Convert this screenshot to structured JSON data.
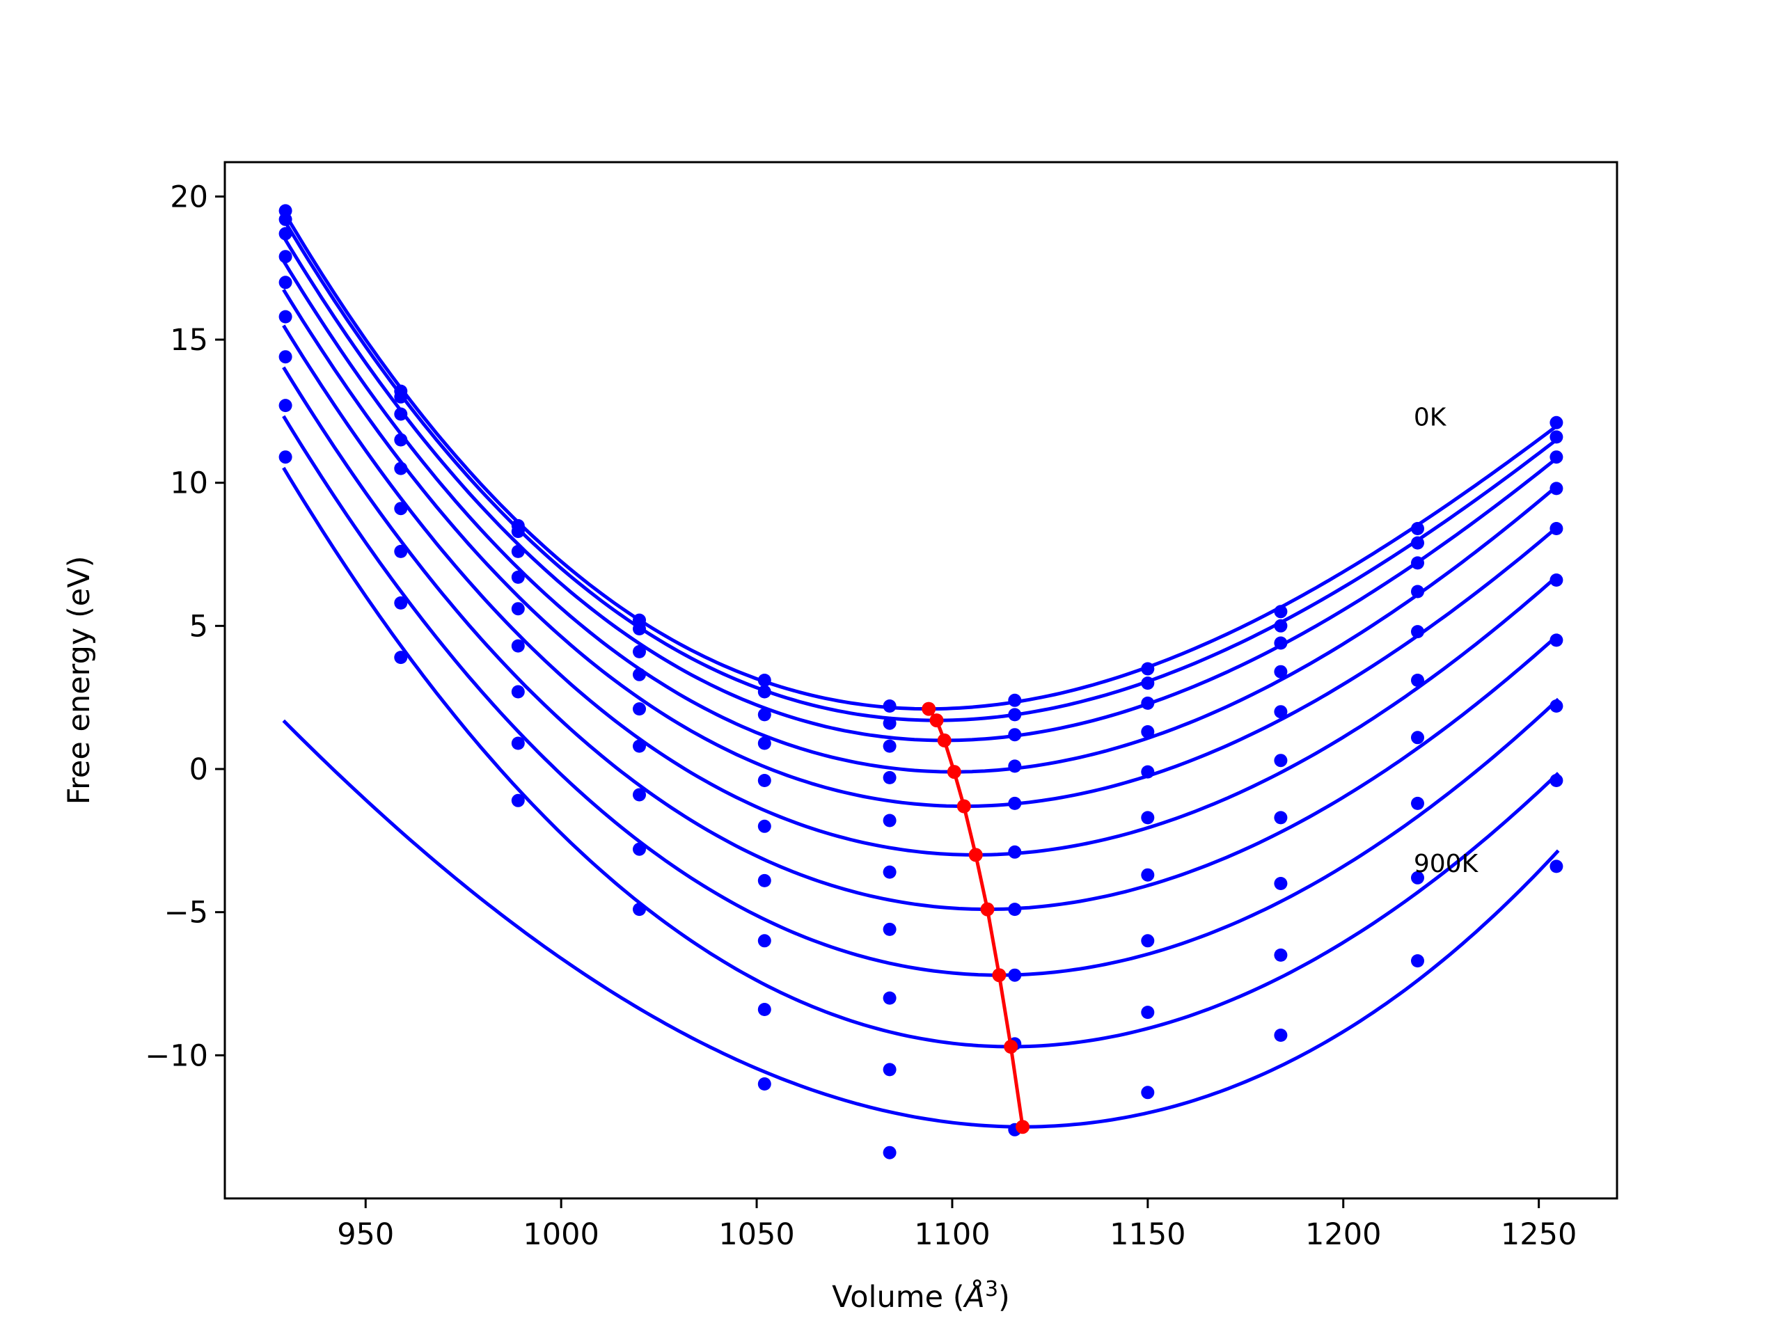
{
  "chart_data": {
    "type": "line",
    "title": "",
    "xlabel": "Volume (",
    "xlabel_unit": "Å",
    "xlabel_exponent": "3",
    "xlabel_close": ")",
    "ylabel": "Free energy (eV)",
    "xlim": [
      914,
      1270
    ],
    "ylim": [
      -15,
      21.2
    ],
    "x_ticks": [
      950,
      1000,
      1050,
      1100,
      1150,
      1200,
      1250
    ],
    "x_tick_labels": [
      "950",
      "1000",
      "1050",
      "1100",
      "1150",
      "1200",
      "1250"
    ],
    "y_ticks": [
      -10,
      -5,
      0,
      5,
      10,
      15,
      20
    ],
    "y_tick_labels": [
      "−10",
      "−5",
      "0",
      "5",
      "10",
      "15",
      "20"
    ],
    "grid": false,
    "annotations": [
      {
        "text": "0K",
        "x": 1218,
        "y": 12.0
      },
      {
        "text": "900K",
        "x": 1218,
        "y": -3.6
      }
    ],
    "colors": {
      "fit_curves": "#0000ff",
      "data_points": "#0000ff",
      "minimum_path": "#ff0000",
      "axes": "#000000"
    },
    "volumes": [
      929.5,
      959,
      989,
      1020,
      1052,
      1084,
      1116,
      1150,
      1184,
      1219,
      1254.5
    ],
    "series": [
      {
        "energies": [
          19.5,
          13.2,
          8.5,
          5.2,
          3.1,
          2.2,
          2.4,
          3.5,
          5.5,
          8.4,
          12.1
        ],
        "fit_min": [
          1094,
          2.1
        ]
      },
      {
        "energies": [
          19.2,
          13.0,
          8.3,
          4.9,
          2.7,
          1.6,
          1.9,
          3.0,
          5.0,
          7.9,
          11.6
        ],
        "fit_min": [
          1096,
          1.7
        ]
      },
      {
        "energies": [
          18.7,
          12.4,
          7.6,
          4.1,
          1.9,
          0.8,
          1.2,
          2.3,
          4.4,
          7.2,
          10.9
        ],
        "fit_min": [
          1098,
          1.0
        ]
      },
      {
        "energies": [
          17.9,
          11.5,
          6.7,
          3.3,
          0.9,
          -0.3,
          0.1,
          1.3,
          3.4,
          6.2,
          9.8
        ],
        "fit_min": [
          1100.5,
          -0.1
        ]
      },
      {
        "energies": [
          17.0,
          10.5,
          5.6,
          2.1,
          -0.4,
          -1.8,
          -1.2,
          -0.1,
          2.0,
          4.8,
          8.4
        ],
        "fit_min": [
          1103,
          -1.3
        ]
      },
      {
        "energies": [
          15.8,
          9.1,
          4.3,
          0.8,
          -2.0,
          -3.6,
          -2.9,
          -1.7,
          0.3,
          3.1,
          6.6
        ],
        "fit_min": [
          1106,
          -3.0
        ]
      },
      {
        "energies": [
          14.4,
          7.6,
          2.7,
          -0.9,
          -3.9,
          -5.6,
          -4.9,
          -3.7,
          -1.7,
          1.1,
          4.5
        ],
        "fit_min": [
          1109,
          -4.9
        ]
      },
      {
        "energies": [
          12.7,
          5.8,
          0.9,
          -2.8,
          -6.0,
          -8.0,
          -7.2,
          -6.0,
          -4.0,
          -1.2,
          2.2
        ],
        "fit_min": [
          1112,
          -7.2
        ]
      },
      {
        "energies": [
          10.9,
          3.9,
          -1.1,
          -4.9,
          -8.4,
          -10.5,
          -9.6,
          -8.5,
          -6.5,
          -3.8,
          -0.4
        ],
        "fit_min": [
          1115,
          -9.7
        ]
      },
      {
        "energies": [
          null,
          null,
          null,
          null,
          -11.0,
          -13.4,
          -12.6,
          -11.3,
          -9.3,
          -6.7,
          -3.4
        ],
        "fit_min": [
          1118,
          -12.5
        ]
      }
    ],
    "minimum_path": {
      "x": [
        1094,
        1096,
        1098,
        1100.5,
        1103,
        1106,
        1109,
        1112,
        1115,
        1118
      ],
      "y": [
        2.1,
        1.7,
        1.0,
        -0.1,
        -1.3,
        -3.0,
        -4.9,
        -7.2,
        -9.7,
        -12.5
      ]
    }
  }
}
